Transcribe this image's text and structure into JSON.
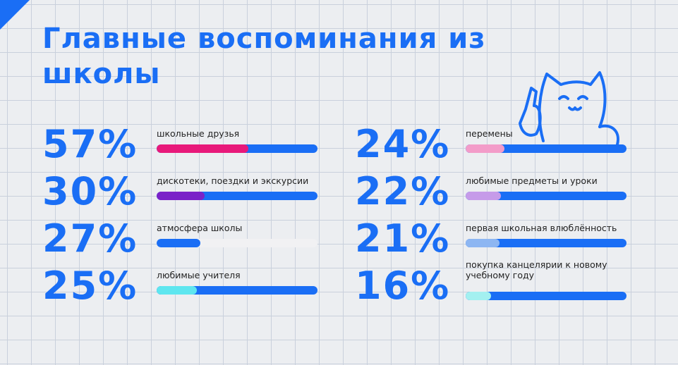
{
  "chart_data": {
    "type": "bar",
    "title": "Главные воспоминания из школы",
    "categories": [
      "школьные друзья",
      "дискотеки, поездки и экскурсии",
      "атмосфера школы",
      "любимые учителя",
      "перемены",
      "любимые предметы и уроки",
      "первая школьная влюблённость",
      "покупка канцелярии к новому учебному году"
    ],
    "values": [
      57,
      30,
      27,
      25,
      24,
      22,
      21,
      16
    ],
    "value_labels": [
      "57%",
      "30%",
      "27%",
      "25%",
      "24%",
      "22%",
      "21%",
      "16%"
    ],
    "colors": [
      "#e8197a",
      "#7a22c8",
      "#1a6ef5",
      "#5ee6ef",
      "#f39cc9",
      "#c69be9",
      "#8db6f2",
      "#a3f0f0"
    ],
    "track_colors": [
      "#1a6ef5",
      "#1a6ef5",
      "#f1f1f3",
      "#1a6ef5",
      "#1a6ef5",
      "#1a6ef5",
      "#1a6ef5",
      "#1a6ef5"
    ],
    "xlim": [
      0,
      100
    ]
  }
}
